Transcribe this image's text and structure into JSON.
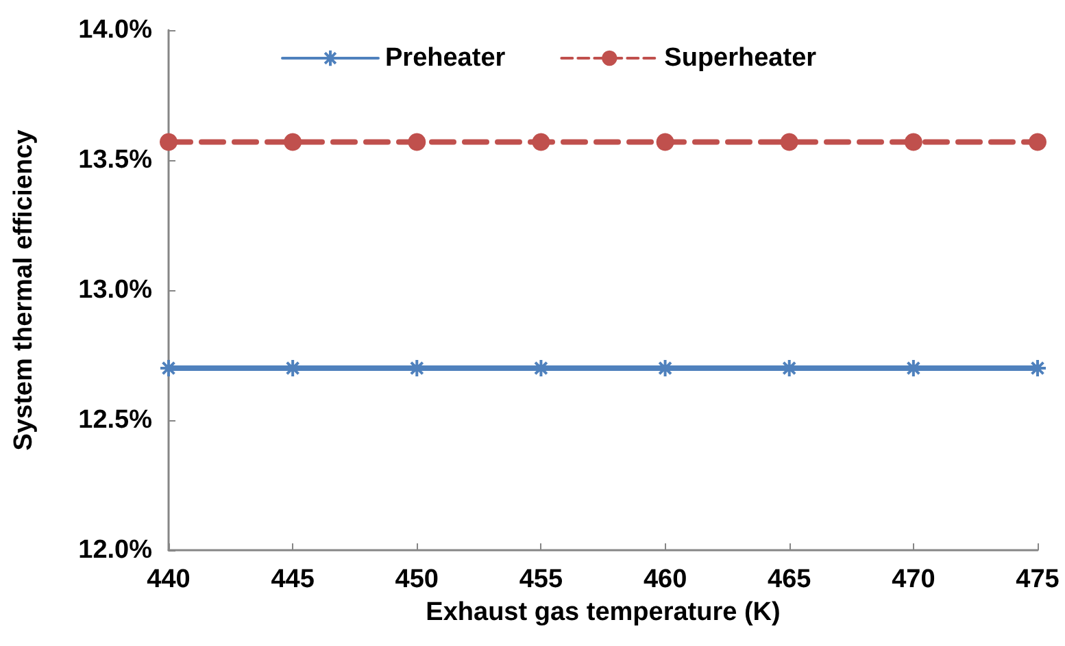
{
  "chart_data": {
    "type": "line",
    "xlabel": "Exhaust gas temperature (K)",
    "ylabel": "System thermal efficiency",
    "x": [
      440,
      445,
      450,
      455,
      460,
      465,
      470,
      475
    ],
    "series": [
      {
        "name": "Preheater",
        "color": "#4f81bd",
        "marker": "cross",
        "line_style": "solid",
        "values": [
          12.7,
          12.7,
          12.7,
          12.7,
          12.7,
          12.7,
          12.7,
          12.7
        ]
      },
      {
        "name": "Superheater",
        "color": "#c0504d",
        "marker": "circle",
        "line_style": "dashed",
        "values": [
          13.57,
          13.57,
          13.57,
          13.57,
          13.57,
          13.57,
          13.57,
          13.57
        ]
      }
    ],
    "xlim": [
      440,
      475
    ],
    "xticks": [
      440,
      445,
      450,
      455,
      460,
      465,
      470,
      475
    ],
    "ylim": [
      12,
      14
    ],
    "yticks": [
      {
        "value": 12,
        "label": "12.0%"
      },
      {
        "value": 12.5,
        "label": "12.5%"
      },
      {
        "value": 13,
        "label": "13.0%"
      },
      {
        "value": 13.5,
        "label": "13.5%"
      },
      {
        "value": 14,
        "label": "14.0%"
      }
    ],
    "grid": false,
    "legend": "top"
  }
}
